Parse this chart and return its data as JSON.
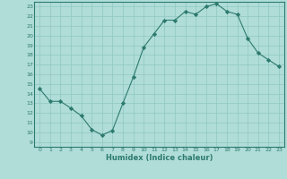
{
  "x": [
    0,
    1,
    2,
    3,
    4,
    5,
    6,
    7,
    8,
    9,
    10,
    11,
    12,
    13,
    14,
    15,
    16,
    17,
    18,
    19,
    20,
    21,
    22,
    23
  ],
  "y": [
    14.5,
    13.2,
    13.2,
    12.5,
    11.7,
    10.3,
    9.7,
    10.2,
    13.0,
    15.7,
    18.8,
    20.2,
    21.6,
    21.6,
    22.5,
    22.2,
    23.0,
    23.3,
    22.5,
    22.2,
    19.7,
    18.2,
    17.5,
    16.8
  ],
  "line_color": "#2d7a6e",
  "marker_color": "#2d7a6e",
  "bg_color": "#b0ddd8",
  "grid_color": "#90c8c0",
  "xlabel": "Humidex (Indice chaleur)",
  "ylabel": "",
  "xlim": [
    -0.5,
    23.5
  ],
  "ylim": [
    8.5,
    23.5
  ],
  "yticks": [
    9,
    10,
    11,
    12,
    13,
    14,
    15,
    16,
    17,
    18,
    19,
    20,
    21,
    22,
    23
  ],
  "xticks": [
    0,
    1,
    2,
    3,
    4,
    5,
    6,
    7,
    8,
    9,
    10,
    11,
    12,
    13,
    14,
    15,
    16,
    17,
    18,
    19,
    20,
    21,
    22,
    23
  ]
}
